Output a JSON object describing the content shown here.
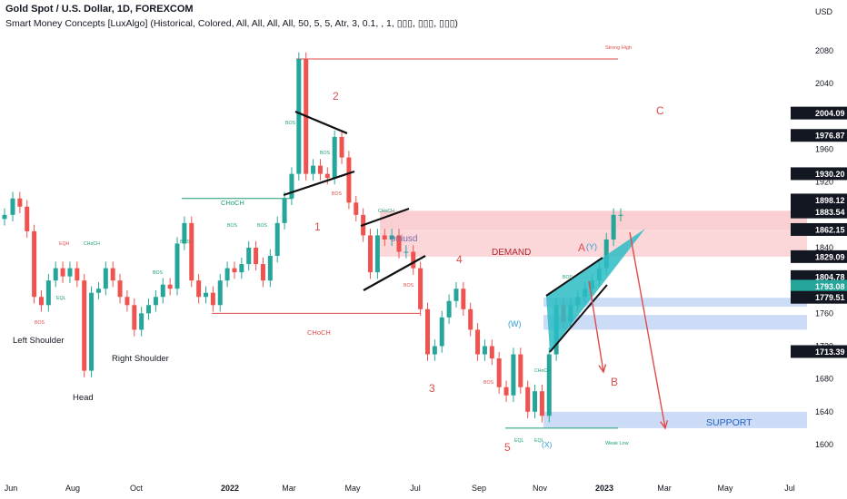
{
  "header": {
    "title": "Gold Spot / U.S. Dollar, 1D, FOREXCOM",
    "indicator": "Smart Money Concepts [LuxAlgo] (Historical, Colored, All, All, All, All, 50, 5, 5, Atr, 3, 0.1, , 1, ▯▯▯, ▯▯▯, ▯▯▯)"
  },
  "chart_data": {
    "type": "candlestick",
    "currency": "USD",
    "ylim": [
      1590,
      2105
    ],
    "y_ticks": [
      1600,
      1640,
      1680,
      1720,
      1760,
      1800,
      1840,
      1880,
      1920,
      1960,
      2000,
      2040,
      2080
    ],
    "x_ticks": [
      "Jun",
      "Aug",
      "Oct",
      "2022",
      "Mar",
      "May",
      "Jul",
      "Sep",
      "Nov",
      "2023",
      "Mar",
      "May",
      "Jul"
    ],
    "price_tags": [
      {
        "value": "2004.09",
        "color": "#131722"
      },
      {
        "value": "1976.87",
        "color": "#131722"
      },
      {
        "value": "1930.20",
        "color": "#131722"
      },
      {
        "value": "1898.12",
        "color": "#131722"
      },
      {
        "value": "1883.54",
        "color": "#131722"
      },
      {
        "value": "1862.15",
        "color": "#131722"
      },
      {
        "value": "1829.09",
        "color": "#131722"
      },
      {
        "value": "1804.78",
        "color": "#131722"
      },
      {
        "value": "1793.08",
        "color": "#26a69a"
      },
      {
        "value": "1779.51",
        "color": "#131722"
      },
      {
        "value": "1713.39",
        "color": "#131722"
      }
    ],
    "series": [
      {
        "points": [
          [
            "2021-05-24",
            1880
          ],
          [
            "2021-06-01",
            1900
          ],
          [
            "2021-06-08",
            1890
          ],
          [
            "2021-06-15",
            1860
          ],
          [
            "2021-06-22",
            1780
          ],
          [
            "2021-06-29",
            1770
          ],
          [
            "2021-07-06",
            1800
          ],
          [
            "2021-07-13",
            1815
          ],
          [
            "2021-07-20",
            1805
          ],
          [
            "2021-07-27",
            1815
          ],
          [
            "2021-08-03",
            1800
          ],
          [
            "2021-08-10",
            1690
          ],
          [
            "2021-08-17",
            1785
          ],
          [
            "2021-08-24",
            1790
          ],
          [
            "2021-08-31",
            1815
          ],
          [
            "2021-09-07",
            1800
          ],
          [
            "2021-09-14",
            1780
          ],
          [
            "2021-09-21",
            1770
          ],
          [
            "2021-09-28",
            1740
          ],
          [
            "2021-10-05",
            1760
          ],
          [
            "2021-10-12",
            1770
          ],
          [
            "2021-10-19",
            1780
          ],
          [
            "2021-10-26",
            1795
          ],
          [
            "2021-11-02",
            1790
          ],
          [
            "2021-11-09",
            1845
          ],
          [
            "2021-11-16",
            1870
          ],
          [
            "2021-11-23",
            1800
          ],
          [
            "2021-11-30",
            1780
          ],
          [
            "2021-12-07",
            1785
          ],
          [
            "2021-12-14",
            1770
          ],
          [
            "2021-12-21",
            1800
          ],
          [
            "2021-12-28",
            1815
          ],
          [
            "2022-01-04",
            1810
          ],
          [
            "2022-01-11",
            1820
          ],
          [
            "2022-01-18",
            1840
          ],
          [
            "2022-01-25",
            1820
          ],
          [
            "2022-02-01",
            1800
          ],
          [
            "2022-02-08",
            1830
          ],
          [
            "2022-02-15",
            1870
          ],
          [
            "2022-02-22",
            1900
          ],
          [
            "2022-03-01",
            1930
          ],
          [
            "2022-03-08",
            2070
          ],
          [
            "2022-03-15",
            1930
          ],
          [
            "2022-03-22",
            1940
          ],
          [
            "2022-03-29",
            1930
          ],
          [
            "2022-04-05",
            1925
          ],
          [
            "2022-04-12",
            1975
          ],
          [
            "2022-04-19",
            1950
          ],
          [
            "2022-04-26",
            1895
          ],
          [
            "2022-05-03",
            1880
          ],
          [
            "2022-05-10",
            1855
          ],
          [
            "2022-05-17",
            1810
          ],
          [
            "2022-05-24",
            1855
          ],
          [
            "2022-05-31",
            1850
          ],
          [
            "2022-06-07",
            1855
          ],
          [
            "2022-06-14",
            1835
          ],
          [
            "2022-06-21",
            1835
          ],
          [
            "2022-06-28",
            1815
          ],
          [
            "2022-07-05",
            1765
          ],
          [
            "2022-07-12",
            1710
          ],
          [
            "2022-07-19",
            1720
          ],
          [
            "2022-07-26",
            1755
          ],
          [
            "2022-08-02",
            1775
          ],
          [
            "2022-08-09",
            1790
          ],
          [
            "2022-08-16",
            1765
          ],
          [
            "2022-08-23",
            1740
          ],
          [
            "2022-08-30",
            1710
          ],
          [
            "2022-09-06",
            1720
          ],
          [
            "2022-09-13",
            1705
          ],
          [
            "2022-09-20",
            1670
          ],
          [
            "2022-09-27",
            1660
          ],
          [
            "2022-10-04",
            1710
          ],
          [
            "2022-10-11",
            1670
          ],
          [
            "2022-10-18",
            1640
          ],
          [
            "2022-10-25",
            1665
          ],
          [
            "2022-11-01",
            1635
          ],
          [
            "2022-11-08",
            1710
          ],
          [
            "2022-11-15",
            1770
          ],
          [
            "2022-11-22",
            1750
          ],
          [
            "2022-11-29",
            1770
          ],
          [
            "2022-12-06",
            1780
          ],
          [
            "2022-12-13",
            1790
          ],
          [
            "2022-12-20",
            1800
          ],
          [
            "2022-12-27",
            1815
          ],
          [
            "2023-01-03",
            1850
          ],
          [
            "2023-01-10",
            1880
          ],
          [
            "2023-01-17",
            1880
          ]
        ]
      }
    ],
    "annotations": {
      "smc_labels": [
        "BOS",
        "CHoCH",
        "EQH",
        "EQL",
        "Strong High",
        "Weak Low"
      ],
      "labels": [
        "Left Shoulder",
        "Head",
        "Right Shoulder",
        "1",
        "2",
        "3",
        "4",
        "5",
        "(W)",
        "(X)",
        "(Y)",
        "A",
        "B",
        "C",
        "DEMAND",
        "SUPPORT",
        "CHoCH",
        "CHoCH",
        "Strong High",
        "Weak Low",
        "oniusd"
      ],
      "zones": [
        {
          "name": "DEMAND",
          "from": 1829,
          "to": 1862
        },
        {
          "name": "SUPPORT",
          "from": 1620,
          "to": 1640
        },
        {
          "name": "upper supply",
          "from": 1862,
          "to": 1885
        },
        {
          "name": "blue box 1",
          "from": 1768,
          "to": 1779
        },
        {
          "name": "blue box 2",
          "from": 1740,
          "to": 1758
        }
      ],
      "levels": {
        "strong_high": 2070,
        "weak_low": 1620,
        "choch_1": 1900,
        "choch_2": 1760
      }
    }
  }
}
